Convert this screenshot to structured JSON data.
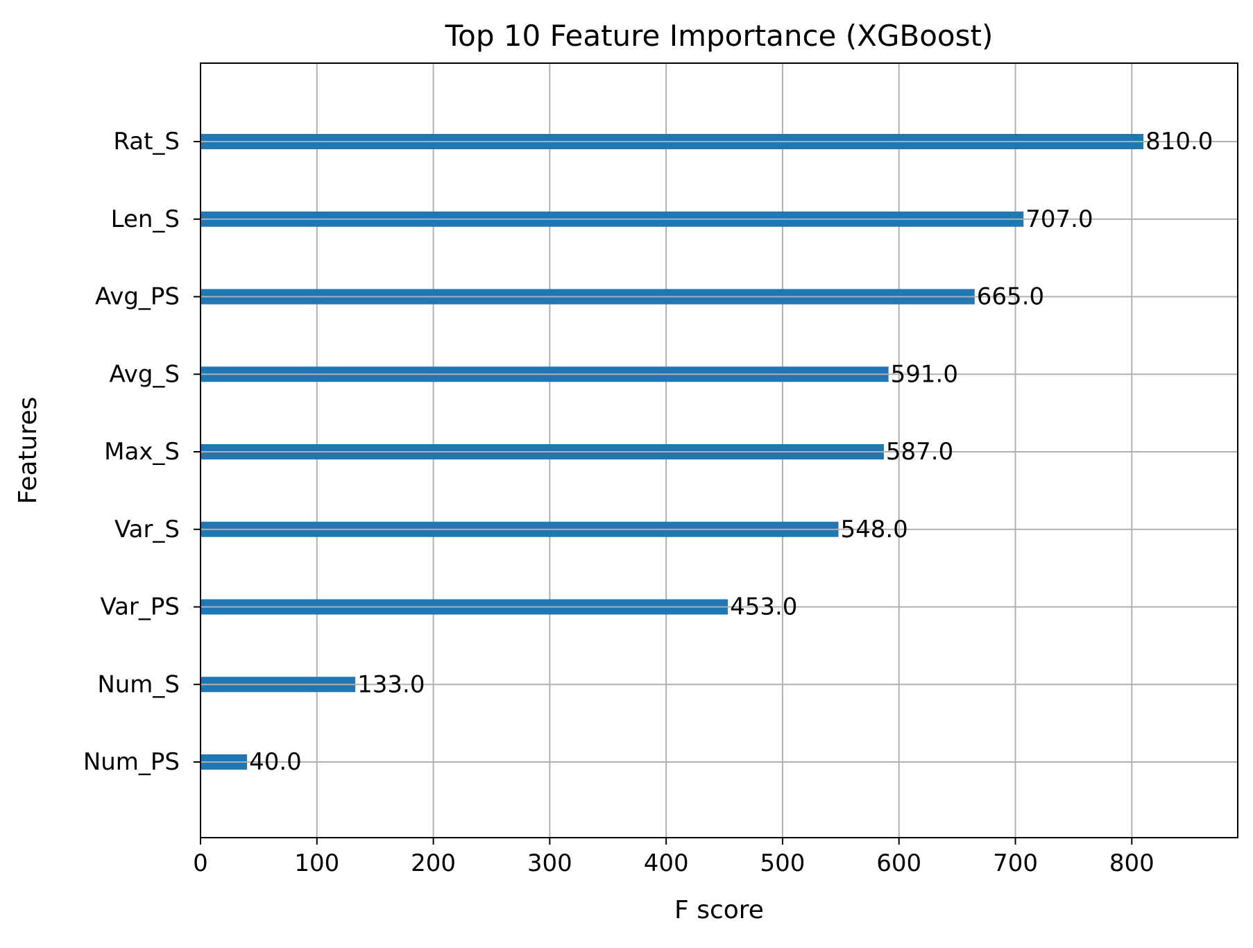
{
  "chart_data": {
    "type": "bar",
    "orientation": "horizontal",
    "title": "Top 10 Feature Importance (XGBoost)",
    "xlabel": "F score",
    "ylabel": "Features",
    "categories": [
      "Rat_S",
      "Len_S",
      "Avg_PS",
      "Avg_S",
      "Max_S",
      "Var_S",
      "Var_PS",
      "Num_S",
      "Num_PS"
    ],
    "values": [
      810,
      707,
      665,
      591,
      587,
      548,
      453,
      133,
      40
    ],
    "value_labels": [
      "810.0",
      "707.0",
      "665.0",
      "591.0",
      "587.0",
      "548.0",
      "453.0",
      "133.0",
      "40.0"
    ],
    "xlim": [
      0,
      891
    ],
    "xticks": [
      0,
      100,
      200,
      300,
      400,
      500,
      600,
      700,
      800
    ],
    "xtick_labels": [
      "0",
      "100",
      "200",
      "300",
      "400",
      "500",
      "600",
      "700",
      "800"
    ],
    "grid": true,
    "bar_color": "#1f77b4",
    "grid_color": "#b0b0b0"
  }
}
